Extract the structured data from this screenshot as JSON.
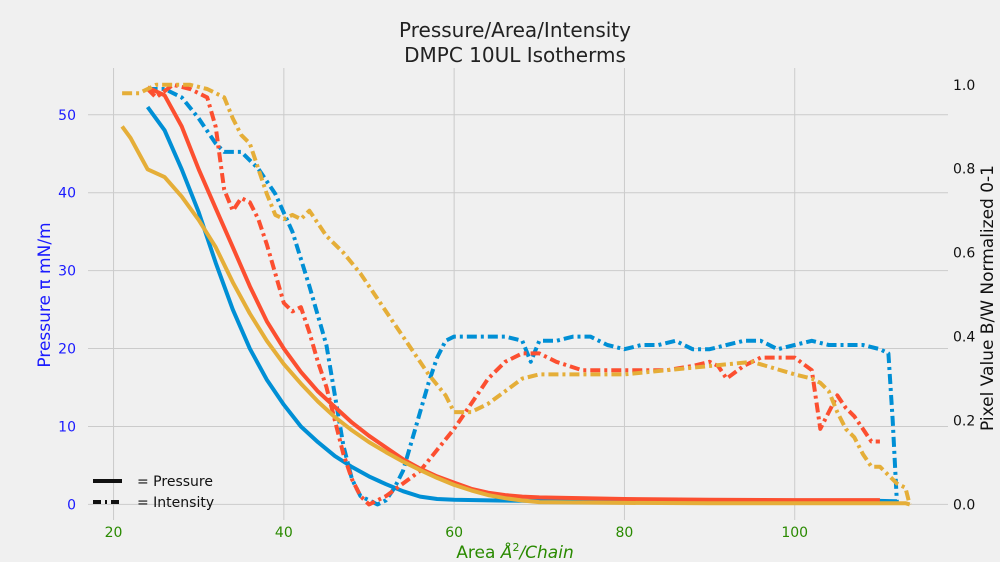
{
  "chart_data": {
    "type": "line",
    "title": [
      "Pressure/Area/Intensity",
      "DMPC 10UL Isotherms"
    ],
    "xlabel_text": "Area ",
    "xlabel_unit": "Å",
    "xlabel_sup": "2",
    "xlabel_suffix": "/Chain",
    "ylabel_left": "Pressure π mN/m",
    "ylabel_right": "Pixel Value B/W Normalized 0-1",
    "xlim": [
      17,
      118
    ],
    "ylim_left": [
      -2,
      56
    ],
    "ylim_right": [
      -0.037,
      1.04
    ],
    "x_ticks": [
      20,
      40,
      60,
      80,
      100
    ],
    "y_left_ticks": [
      0,
      10,
      20,
      30,
      40,
      50
    ],
    "y_right_ticks": [
      "0.0",
      "0.2",
      "0.4",
      "0.6",
      "0.8",
      "1.0"
    ],
    "grid": true,
    "legend": {
      "position": "bottom-left",
      "items": [
        {
          "style": "solid",
          "label": "= Pressure"
        },
        {
          "style": "dashdot",
          "label": "= Intensity"
        }
      ]
    },
    "series": [
      {
        "color": "#008fd5",
        "axis": "left",
        "style": "solid",
        "x": [
          24,
          26,
          28,
          30,
          32,
          34,
          36,
          38,
          40,
          42,
          44,
          46,
          48,
          50,
          52,
          54,
          56,
          58,
          60,
          65,
          70,
          80,
          90,
          100,
          110,
          112
        ],
        "y": [
          51,
          48,
          43,
          37.5,
          31,
          25,
          20,
          16,
          12.8,
          10,
          8,
          6.2,
          4.8,
          3.6,
          2.6,
          1.7,
          1.0,
          0.7,
          0.6,
          0.5,
          0.45,
          0.45,
          0.45,
          0.45,
          0.45,
          0.4
        ]
      },
      {
        "color": "#008fd5",
        "axis": "right",
        "style": "dashdot",
        "x": [
          24,
          26,
          28,
          30,
          32,
          33,
          35,
          37,
          39,
          41,
          43,
          45,
          46,
          47,
          48,
          49,
          50,
          51,
          52,
          53,
          54,
          55,
          56,
          57,
          58,
          59,
          60,
          62,
          64,
          66,
          68,
          69,
          70,
          72,
          74,
          76,
          78,
          80,
          82,
          84,
          86,
          88,
          90,
          92,
          94,
          96,
          98,
          100,
          102,
          104,
          106,
          108,
          110,
          111,
          111.5,
          112
        ],
        "y": [
          0.99,
          0.99,
          0.97,
          0.92,
          0.86,
          0.84,
          0.84,
          0.8,
          0.74,
          0.65,
          0.52,
          0.38,
          0.26,
          0.14,
          0.06,
          0.02,
          0.01,
          0.0,
          0.01,
          0.04,
          0.08,
          0.15,
          0.22,
          0.29,
          0.35,
          0.39,
          0.4,
          0.4,
          0.4,
          0.4,
          0.39,
          0.34,
          0.39,
          0.39,
          0.4,
          0.4,
          0.38,
          0.37,
          0.38,
          0.38,
          0.39,
          0.37,
          0.37,
          0.38,
          0.39,
          0.39,
          0.37,
          0.38,
          0.39,
          0.38,
          0.38,
          0.38,
          0.37,
          0.36,
          0.2,
          0.005
        ]
      },
      {
        "color": "#fc4f30",
        "axis": "left",
        "style": "solid",
        "x": [
          24,
          26,
          28,
          30,
          32,
          34,
          36,
          38,
          40,
          42,
          44,
          46,
          48,
          50,
          52,
          54,
          56,
          58,
          60,
          62,
          64,
          66,
          68,
          70,
          80,
          90,
          100,
          110
        ],
        "y": [
          53.5,
          52.5,
          48.5,
          43,
          38,
          33,
          28,
          23.5,
          20,
          17,
          14.5,
          12.5,
          10.5,
          8.8,
          7.3,
          5.8,
          4.6,
          3.6,
          2.8,
          2.0,
          1.5,
          1.2,
          1.0,
          0.9,
          0.7,
          0.6,
          0.55,
          0.55
        ]
      },
      {
        "color": "#fc4f30",
        "axis": "right",
        "style": "dashdot",
        "x": [
          24,
          25,
          27,
          29,
          31,
          32,
          33,
          34,
          35,
          36,
          37,
          38,
          39,
          40,
          41,
          42,
          43,
          44,
          45,
          46,
          47,
          48,
          49,
          50,
          52,
          54,
          56,
          58,
          60,
          62,
          64,
          66,
          68,
          70,
          72,
          75,
          78,
          80,
          85,
          88,
          90,
          91,
          92,
          94,
          96,
          98,
          100,
          102,
          103,
          104,
          105,
          106,
          107,
          108,
          109,
          110
        ],
        "y": [
          0.99,
          0.97,
          1.0,
          0.99,
          0.97,
          0.9,
          0.75,
          0.7,
          0.73,
          0.72,
          0.68,
          0.62,
          0.55,
          0.48,
          0.46,
          0.47,
          0.41,
          0.34,
          0.28,
          0.2,
          0.12,
          0.06,
          0.02,
          0.0,
          0.02,
          0.05,
          0.08,
          0.13,
          0.18,
          0.24,
          0.3,
          0.34,
          0.36,
          0.36,
          0.34,
          0.32,
          0.32,
          0.32,
          0.32,
          0.33,
          0.34,
          0.33,
          0.3,
          0.33,
          0.35,
          0.35,
          0.35,
          0.32,
          0.18,
          0.22,
          0.26,
          0.23,
          0.21,
          0.18,
          0.15,
          0.15
        ]
      },
      {
        "color": "#e5ae38",
        "axis": "left",
        "style": "solid",
        "x": [
          21,
          22,
          23,
          24,
          25,
          26,
          28,
          30,
          32,
          34,
          36,
          38,
          40,
          42,
          44,
          46,
          48,
          50,
          52,
          54,
          56,
          58,
          60,
          62,
          64,
          66,
          68,
          70,
          80,
          90,
          100,
          110,
          112,
          113,
          113.5
        ],
        "y": [
          48.5,
          47,
          45,
          43,
          42.5,
          42,
          39.5,
          36.5,
          33,
          28.5,
          24.5,
          21,
          18,
          15.5,
          13.2,
          11.2,
          9.5,
          8.0,
          6.7,
          5.5,
          4.4,
          3.4,
          2.5,
          1.8,
          1.2,
          0.8,
          0.5,
          0.3,
          0.2,
          0.15,
          0.15,
          0.15,
          0.15,
          0.15,
          0.0
        ]
      },
      {
        "color": "#e5ae38",
        "axis": "right",
        "style": "dashdot",
        "x": [
          21,
          23,
          25,
          27,
          29,
          31,
          33,
          34,
          35,
          36,
          37,
          38,
          39,
          40,
          41,
          42,
          43,
          44,
          45,
          47,
          49,
          51,
          53,
          55,
          57,
          59,
          60,
          62,
          64,
          66,
          68,
          70,
          75,
          80,
          85,
          90,
          95,
          100,
          102,
          103,
          104,
          105,
          106,
          107,
          108,
          109,
          110,
          111,
          112,
          113,
          113.5
        ],
        "y": [
          0.98,
          0.98,
          1.0,
          1.0,
          1.0,
          0.99,
          0.97,
          0.92,
          0.88,
          0.86,
          0.8,
          0.74,
          0.69,
          0.68,
          0.69,
          0.68,
          0.7,
          0.67,
          0.64,
          0.6,
          0.55,
          0.49,
          0.43,
          0.37,
          0.31,
          0.26,
          0.22,
          0.22,
          0.24,
          0.27,
          0.3,
          0.31,
          0.31,
          0.31,
          0.32,
          0.33,
          0.34,
          0.31,
          0.3,
          0.29,
          0.27,
          0.22,
          0.18,
          0.16,
          0.12,
          0.09,
          0.09,
          0.07,
          0.05,
          0.04,
          0.0
        ]
      }
    ]
  }
}
